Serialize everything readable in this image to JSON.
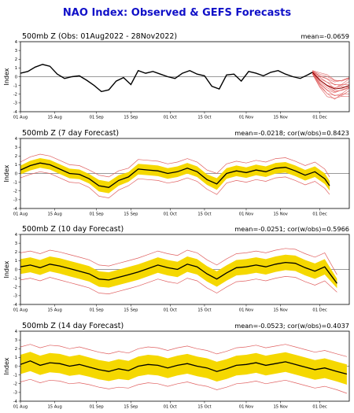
{
  "title": "NAO Index: Observed & GEFS Forecasts",
  "colors": {
    "title": "#1010c8",
    "observed": "#000000",
    "spread": "#f5d800",
    "members": "#e06060",
    "zero_line": "#000000"
  },
  "chart_data": [
    {
      "type": "line",
      "title": "500mb Z (Obs: 01Aug2022 - 28Nov2022)",
      "stats": "mean=-0.0659",
      "ylabel": "Index",
      "ylim": [
        -4,
        4
      ],
      "yticks": [
        "4",
        "3",
        "2",
        "1",
        "0",
        "-1",
        "-2",
        "-3",
        "-4"
      ],
      "xticks": [
        "01 Aug",
        "15 Aug",
        "01 Sep",
        "15 Sep",
        "01 Oct",
        "15 Oct",
        "01 Nov",
        "15 Nov",
        "01 Dec"
      ],
      "x_start": "2022-08-01",
      "x_end": "2022-12-13",
      "grid": false,
      "observed": {
        "name": "Observed",
        "dates": [
          "2022-08-01",
          "2022-08-04",
          "2022-08-07",
          "2022-08-10",
          "2022-08-13",
          "2022-08-16",
          "2022-08-19",
          "2022-08-22",
          "2022-08-25",
          "2022-08-28",
          "2022-08-31",
          "2022-09-03",
          "2022-09-06",
          "2022-09-09",
          "2022-09-12",
          "2022-09-15",
          "2022-09-18",
          "2022-09-21",
          "2022-09-24",
          "2022-09-27",
          "2022-09-30",
          "2022-10-03",
          "2022-10-06",
          "2022-10-09",
          "2022-10-12",
          "2022-10-15",
          "2022-10-18",
          "2022-10-21",
          "2022-10-24",
          "2022-10-27",
          "2022-10-30",
          "2022-11-02",
          "2022-11-05",
          "2022-11-08",
          "2022-11-11",
          "2022-11-14",
          "2022-11-17",
          "2022-11-20",
          "2022-11-23",
          "2022-11-26",
          "2022-11-28"
        ],
        "values": [
          0.4,
          0.6,
          1.1,
          1.4,
          1.2,
          0.3,
          -0.2,
          0.0,
          0.1,
          -0.4,
          -1.0,
          -1.7,
          -1.5,
          -0.5,
          -0.1,
          -0.9,
          0.7,
          0.4,
          0.6,
          0.3,
          0.0,
          -0.2,
          0.4,
          0.7,
          0.3,
          0.1,
          -1.1,
          -1.4,
          0.2,
          0.3,
          -0.5,
          0.6,
          0.4,
          0.1,
          0.5,
          0.7,
          0.3,
          0.0,
          -0.2,
          0.2,
          0.5
        ]
      },
      "forecast": {
        "name": "GEFS members",
        "dates": [
          "2022-11-28",
          "2022-12-01",
          "2022-12-04",
          "2022-12-07",
          "2022-12-10",
          "2022-12-13"
        ],
        "mean": [
          0.5,
          -0.4,
          -1.0,
          -1.4,
          -1.3,
          -1.0
        ],
        "lower": [
          0.3,
          -1.2,
          -2.2,
          -2.6,
          -2.3,
          -2.0
        ],
        "upper": [
          0.7,
          0.4,
          0.2,
          -0.3,
          -0.3,
          0.0
        ]
      }
    },
    {
      "type": "line",
      "title": "500mb Z (7 day Forecast)",
      "stats": "mean=-0.0218; cor(w/obs)=0.8423",
      "ylabel": "Index",
      "ylim": [
        -4,
        4
      ],
      "yticks": [
        "4",
        "3",
        "2",
        "1",
        "0",
        "-1",
        "-2",
        "-3",
        "-4"
      ],
      "xticks": [
        "01 Aug",
        "15 Aug",
        "01 Sep",
        "15 Sep",
        "01 Oct",
        "15 Oct",
        "01 Nov",
        "15 Nov",
        "01 Dec"
      ],
      "x_start": "2022-08-01",
      "x_end": "2022-12-13",
      "grid": false,
      "dates": [
        "2022-08-01",
        "2022-08-05",
        "2022-08-09",
        "2022-08-13",
        "2022-08-17",
        "2022-08-21",
        "2022-08-25",
        "2022-08-29",
        "2022-09-02",
        "2022-09-06",
        "2022-09-10",
        "2022-09-14",
        "2022-09-18",
        "2022-09-22",
        "2022-09-26",
        "2022-09-30",
        "2022-10-04",
        "2022-10-08",
        "2022-10-12",
        "2022-10-16",
        "2022-10-20",
        "2022-10-24",
        "2022-10-28",
        "2022-11-01",
        "2022-11-05",
        "2022-11-09",
        "2022-11-13",
        "2022-11-17",
        "2022-11-21",
        "2022-11-25",
        "2022-11-29",
        "2022-12-03",
        "2022-12-05"
      ],
      "mean": [
        0.4,
        0.9,
        1.2,
        1.0,
        0.5,
        0.0,
        -0.1,
        -0.6,
        -1.4,
        -1.6,
        -0.8,
        -0.4,
        0.5,
        0.4,
        0.3,
        0.0,
        0.2,
        0.6,
        0.2,
        -0.7,
        -1.2,
        0.0,
        0.3,
        0.1,
        0.4,
        0.2,
        0.6,
        0.7,
        0.3,
        -0.2,
        0.2,
        -0.6,
        -1.4
      ],
      "lower": [
        -0.5,
        -0.1,
        0.2,
        0.0,
        -0.5,
        -1.0,
        -1.1,
        -1.6,
        -2.6,
        -2.8,
        -1.9,
        -1.4,
        -0.6,
        -0.7,
        -0.8,
        -1.1,
        -0.9,
        -0.5,
        -0.9,
        -1.8,
        -2.4,
        -1.1,
        -0.8,
        -1.0,
        -0.7,
        -0.9,
        -0.5,
        -0.4,
        -0.8,
        -1.3,
        -0.9,
        -1.7,
        -2.4
      ],
      "upper": [
        1.3,
        1.9,
        2.2,
        2.0,
        1.5,
        1.0,
        0.9,
        0.4,
        -0.2,
        -0.4,
        0.3,
        0.6,
        1.6,
        1.5,
        1.4,
        1.1,
        1.3,
        1.7,
        1.3,
        0.4,
        0.0,
        1.1,
        1.4,
        1.2,
        1.5,
        1.3,
        1.7,
        1.8,
        1.4,
        0.9,
        1.3,
        0.5,
        -0.4
      ]
    },
    {
      "type": "line",
      "title": "500mb Z (10 day Forecast)",
      "stats": "mean=-0.0251; cor(w/obs)=0.5966",
      "ylabel": "Index",
      "ylim": [
        -4,
        4
      ],
      "yticks": [
        "4",
        "3",
        "2",
        "1",
        "0",
        "-1",
        "-2",
        "-3",
        "-4"
      ],
      "xticks": [
        "01 Aug",
        "15 Aug",
        "01 Sep",
        "15 Sep",
        "01 Oct",
        "15 Oct",
        "01 Nov",
        "15 Nov",
        "01 Dec"
      ],
      "x_start": "2022-08-01",
      "x_end": "2022-12-13",
      "grid": false,
      "dates": [
        "2022-08-01",
        "2022-08-05",
        "2022-08-09",
        "2022-08-13",
        "2022-08-17",
        "2022-08-21",
        "2022-08-25",
        "2022-08-29",
        "2022-09-02",
        "2022-09-06",
        "2022-09-10",
        "2022-09-14",
        "2022-09-18",
        "2022-09-22",
        "2022-09-26",
        "2022-09-30",
        "2022-10-04",
        "2022-10-08",
        "2022-10-12",
        "2022-10-16",
        "2022-10-20",
        "2022-10-24",
        "2022-10-28",
        "2022-11-01",
        "2022-11-05",
        "2022-11-09",
        "2022-11-13",
        "2022-11-17",
        "2022-11-21",
        "2022-11-25",
        "2022-11-29",
        "2022-12-03",
        "2022-12-08"
      ],
      "mean": [
        0.3,
        0.5,
        0.2,
        0.6,
        0.4,
        0.1,
        -0.2,
        -0.5,
        -1.1,
        -1.2,
        -0.9,
        -0.6,
        -0.3,
        0.1,
        0.5,
        0.2,
        0.0,
        0.6,
        0.3,
        -0.5,
        -1.1,
        -0.4,
        0.2,
        0.3,
        0.5,
        0.3,
        0.6,
        0.8,
        0.7,
        0.2,
        -0.2,
        0.3,
        -1.6
      ],
      "lower": [
        -1.2,
        -1.0,
        -1.3,
        -0.9,
        -1.2,
        -1.5,
        -1.8,
        -2.1,
        -2.7,
        -2.8,
        -2.5,
        -2.2,
        -1.9,
        -1.5,
        -1.1,
        -1.4,
        -1.6,
        -1.0,
        -1.3,
        -2.1,
        -2.7,
        -2.0,
        -1.4,
        -1.3,
        -1.1,
        -1.3,
        -1.0,
        -0.8,
        -0.9,
        -1.4,
        -1.8,
        -1.3,
        -2.6
      ],
      "upper": [
        1.9,
        2.1,
        1.8,
        2.2,
        2.0,
        1.7,
        1.4,
        1.1,
        0.5,
        0.4,
        0.7,
        1.0,
        1.3,
        1.7,
        2.1,
        1.8,
        1.6,
        2.2,
        1.9,
        1.1,
        0.5,
        1.2,
        1.8,
        1.9,
        2.1,
        1.9,
        2.2,
        2.4,
        2.3,
        1.8,
        1.4,
        1.9,
        -0.6
      ]
    },
    {
      "type": "line",
      "title": "500mb Z (14 day Forecast)",
      "stats": "mean=-0.0523; cor(w/obs)=0.4037",
      "ylabel": "Index",
      "ylim": [
        -4,
        4
      ],
      "yticks": [
        "4",
        "3",
        "2",
        "1",
        "0",
        "-1",
        "-2",
        "-3",
        "-4"
      ],
      "xticks": [
        "01 Aug",
        "15 Aug",
        "01 Sep",
        "15 Sep",
        "01 Oct",
        "15 Oct",
        "01 Nov",
        "15 Nov",
        "01 Dec"
      ],
      "x_start": "2022-08-01",
      "x_end": "2022-12-13",
      "grid": false,
      "dates": [
        "2022-08-01",
        "2022-08-05",
        "2022-08-09",
        "2022-08-13",
        "2022-08-17",
        "2022-08-21",
        "2022-08-25",
        "2022-08-29",
        "2022-09-02",
        "2022-09-06",
        "2022-09-10",
        "2022-09-14",
        "2022-09-18",
        "2022-09-22",
        "2022-09-26",
        "2022-09-30",
        "2022-10-04",
        "2022-10-08",
        "2022-10-12",
        "2022-10-16",
        "2022-10-20",
        "2022-10-24",
        "2022-10-28",
        "2022-11-01",
        "2022-11-05",
        "2022-11-09",
        "2022-11-13",
        "2022-11-17",
        "2022-11-21",
        "2022-11-25",
        "2022-11-29",
        "2022-12-03",
        "2022-12-08",
        "2022-12-12"
      ],
      "mean": [
        0.2,
        0.6,
        0.1,
        0.4,
        0.3,
        0.0,
        0.2,
        -0.1,
        -0.4,
        -0.6,
        -0.3,
        -0.5,
        0.0,
        0.2,
        0.1,
        -0.2,
        0.1,
        0.3,
        0.0,
        -0.2,
        -0.6,
        -0.3,
        0.1,
        0.2,
        0.4,
        0.1,
        0.3,
        0.5,
        0.2,
        -0.1,
        -0.4,
        -0.2,
        -0.6,
        -0.9
      ],
      "lower": [
        -1.8,
        -1.5,
        -1.9,
        -1.6,
        -1.7,
        -2.0,
        -1.9,
        -2.1,
        -2.4,
        -2.6,
        -2.4,
        -2.5,
        -2.1,
        -1.9,
        -2.0,
        -2.3,
        -2.0,
        -1.8,
        -2.1,
        -2.3,
        -2.7,
        -2.4,
        -2.0,
        -1.9,
        -1.7,
        -2.0,
        -1.8,
        -1.6,
        -1.9,
        -2.2,
        -2.5,
        -2.3,
        -2.7,
        -3.1
      ],
      "upper": [
        2.2,
        2.5,
        2.1,
        2.4,
        2.3,
        2.0,
        2.2,
        1.9,
        1.6,
        1.4,
        1.7,
        1.5,
        2.0,
        2.2,
        2.1,
        1.8,
        2.1,
        2.3,
        2.0,
        1.8,
        1.4,
        1.7,
        2.1,
        2.2,
        2.4,
        2.1,
        2.3,
        2.5,
        2.2,
        1.9,
        1.6,
        1.8,
        1.4,
        1.1
      ]
    }
  ]
}
